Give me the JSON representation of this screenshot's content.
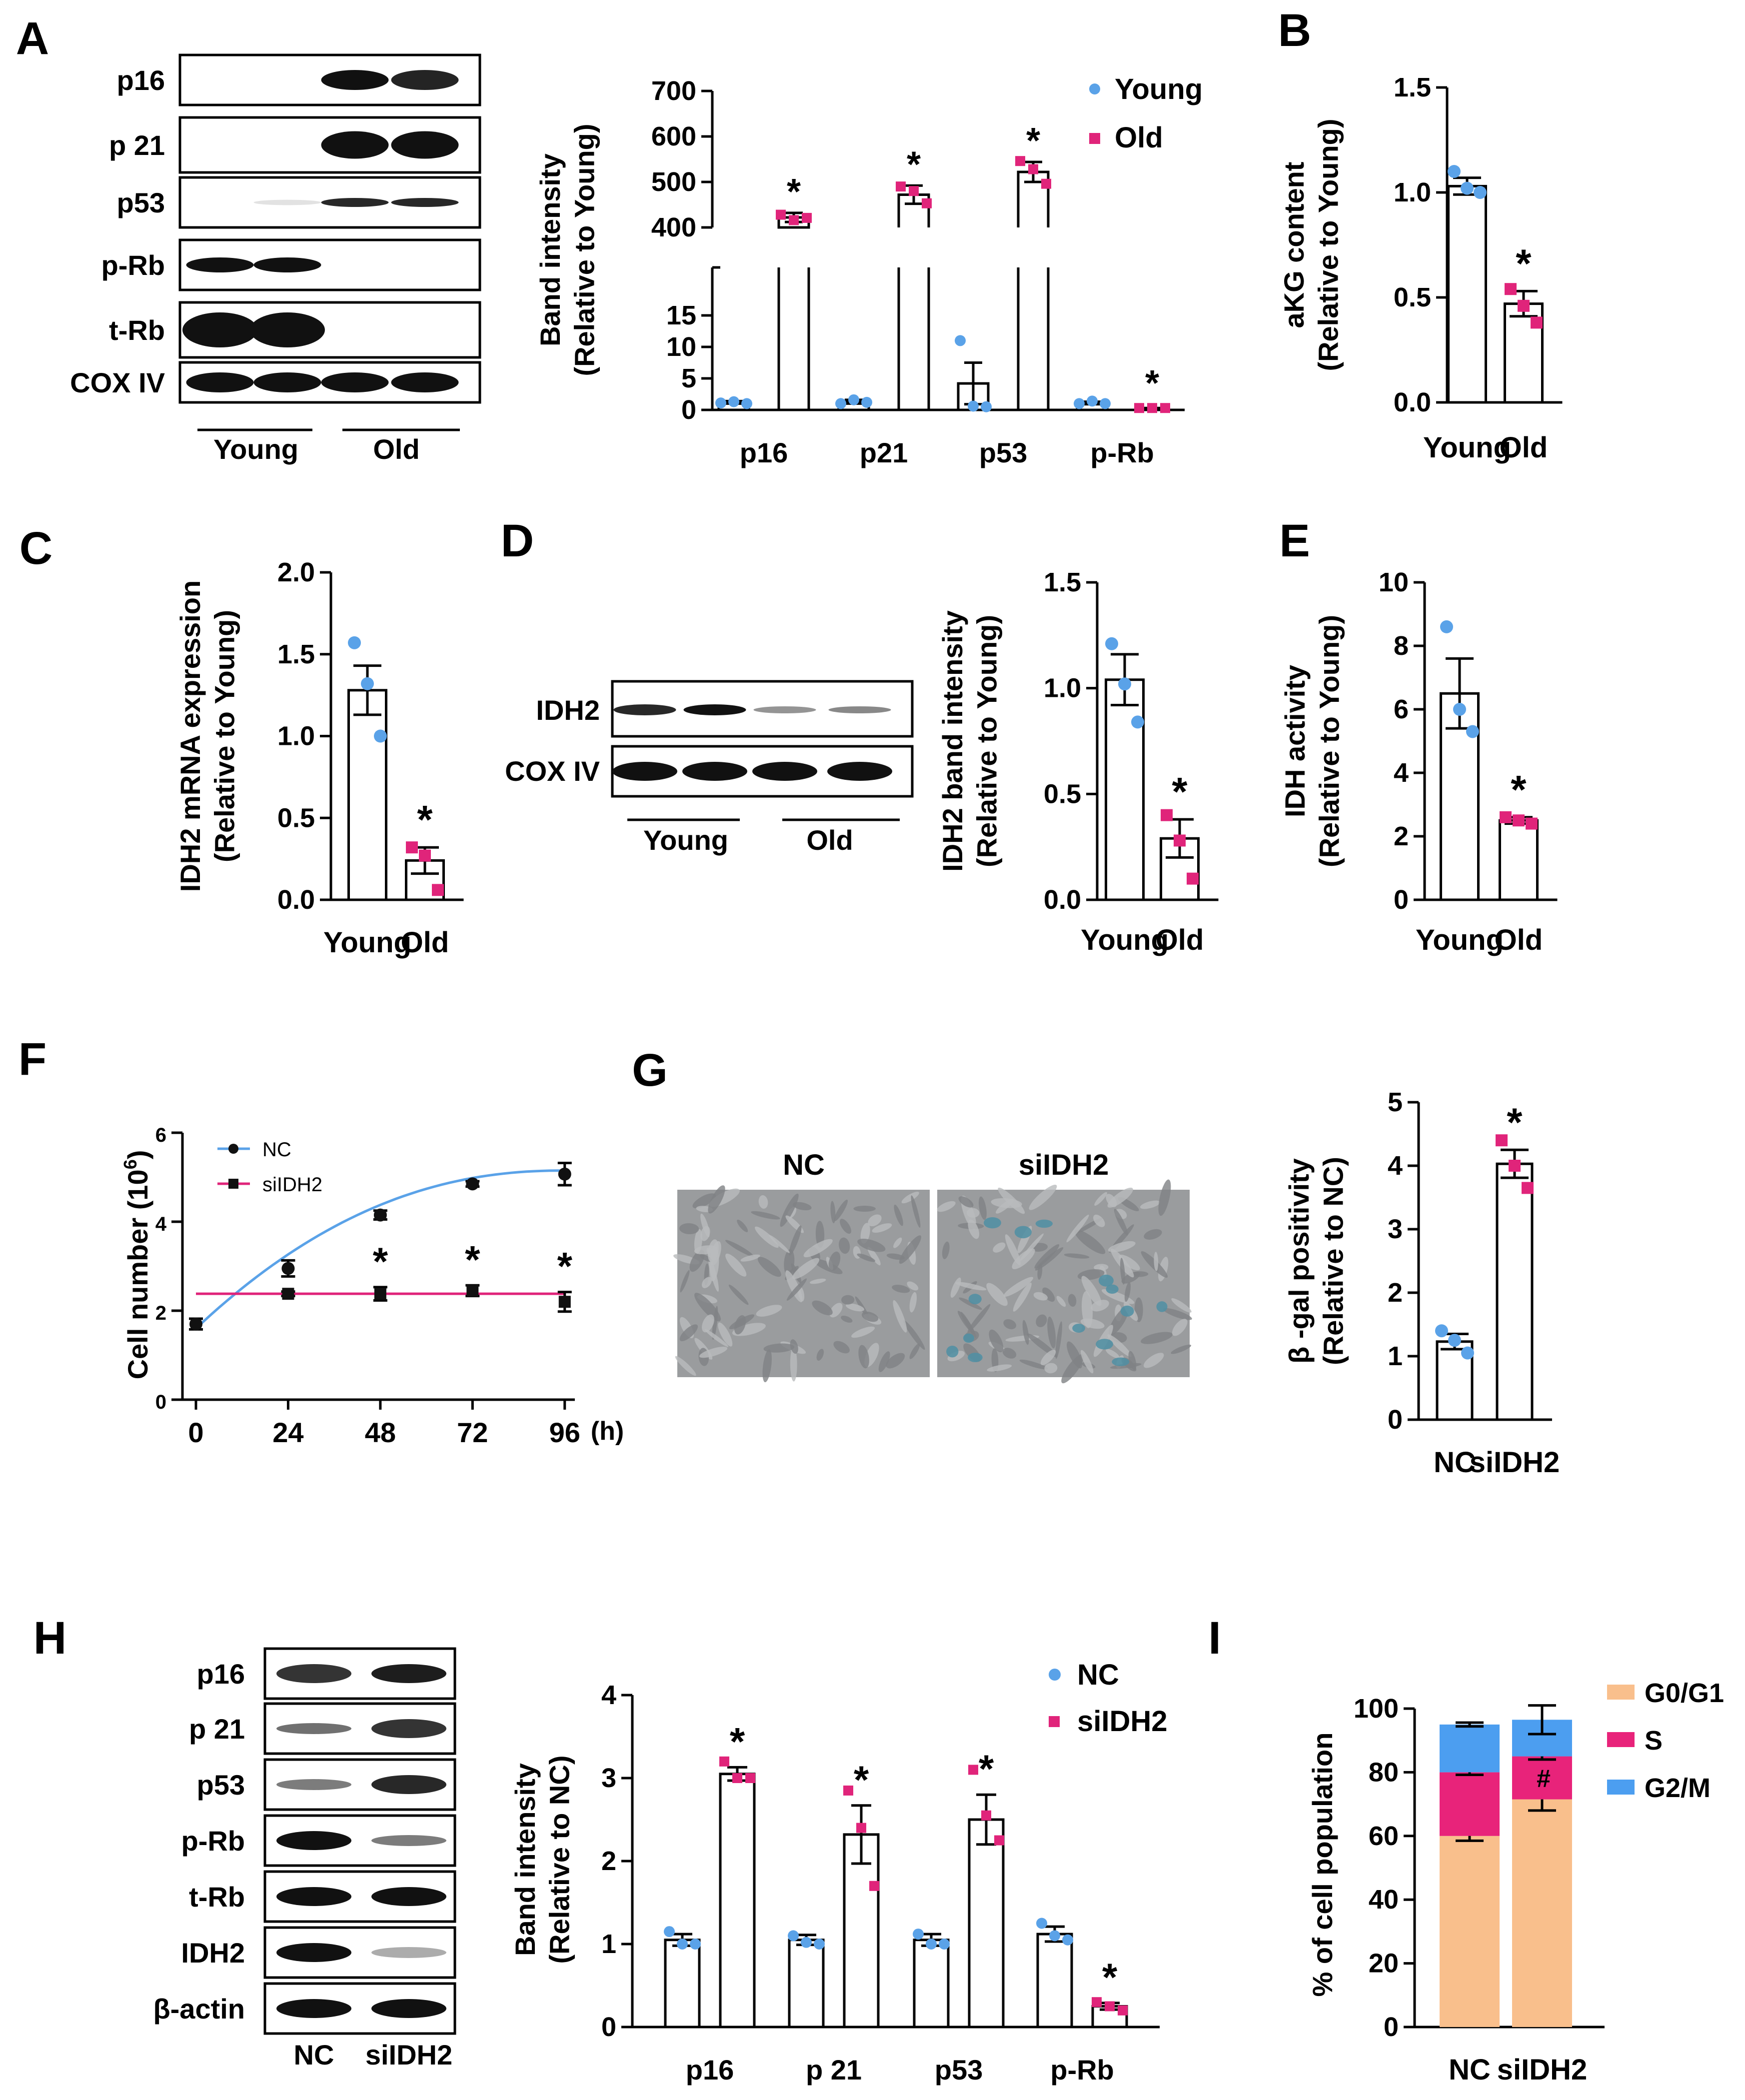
{
  "colors": {
    "young": "#5aa2e8",
    "old": "#e0247a",
    "nc": "#5aa2e8",
    "siidh2": "#e0247a",
    "g0g1": "#f9bf8c",
    "s": "#e8237a",
    "g2m": "#4c9ef0",
    "line_nc": "#5aa2e8",
    "line_si": "#e0247a"
  },
  "panel_letters": [
    "A",
    "B",
    "C",
    "D",
    "E",
    "F",
    "G",
    "H",
    "I"
  ],
  "A": {
    "blot_labels": [
      "p16",
      "p 21",
      "p53",
      "p-Rb",
      "t-Rb",
      "COX IV"
    ],
    "group_labels": [
      "Young",
      "Old"
    ],
    "ylabel": [
      "Band intensity",
      "(Relative to  Young)"
    ],
    "legend": [
      "Young",
      "Old"
    ]
  },
  "B": {
    "ylabel": [
      "aKG content",
      "(Relative to Young)"
    ]
  },
  "C": {
    "ylabel": [
      "IDH2 mRNA expression",
      "(Relative to Young)"
    ]
  },
  "D": {
    "blot_labels": [
      "IDH2",
      "COX IV"
    ],
    "group_labels": [
      "Young",
      "Old"
    ],
    "ylabel": [
      "IDH2 band intensity",
      "(Relative to Young)"
    ]
  },
  "E": {
    "ylabel": [
      "IDH activity",
      "(Relative to Young)"
    ]
  },
  "F": {
    "ylabel_main": "Cell number (10",
    "ylabel_sup": "6",
    "ylabel_close": ")",
    "unit": "(h)",
    "legend": [
      "NC",
      "siIDH2"
    ]
  },
  "G": {
    "image_labels": [
      "NC",
      "siIDH2"
    ],
    "ylabel": [
      "β -gal positivity",
      "(Relative to NC)"
    ]
  },
  "H": {
    "blot_labels": [
      "p16",
      "p 21",
      "p53",
      "p-Rb",
      "t-Rb",
      "IDH2",
      "β-actin"
    ],
    "group_labels": [
      "NC",
      "siIDH2"
    ],
    "ylabel": [
      "Band intensity",
      "(Relative to NC)"
    ],
    "legend": [
      "NC",
      "siIDH2"
    ]
  },
  "I": {
    "ylabel": "% of cell population",
    "legend": [
      "G0/G1",
      "S",
      "G2/M"
    ],
    "annotation": "#"
  },
  "chart_data": [
    {
      "panel": "A",
      "type": "bar",
      "categories": [
        "p16",
        "p21",
        "p53",
        "p-Rb"
      ],
      "yticks_upper": [
        400,
        500,
        600,
        700
      ],
      "yticks_lower": [
        0,
        5,
        10,
        15
      ],
      "series": [
        {
          "name": "Young",
          "values": [
            1.2,
            1.3,
            4.2,
            1.1
          ],
          "errors": [
            0.2,
            0.3,
            3.3,
            0.2
          ],
          "points": [
            [
              1.1,
              1.3,
              1.0
            ],
            [
              1.0,
              1.6,
              1.2
            ],
            [
              11.0,
              0.6,
              0.5
            ],
            [
              1.0,
              1.4,
              1.0
            ]
          ]
        },
        {
          "name": "Old",
          "values": [
            422,
            472,
            522,
            0.3
          ],
          "errors": [
            10,
            20,
            22,
            0.1
          ],
          "points": [
            [
              428,
              416,
              421
            ],
            [
              490,
              480,
              453
            ],
            [
              546,
              528,
              496
            ],
            [
              0.3,
              0.3,
              0.3
            ]
          ]
        }
      ],
      "significance": [
        "*",
        "*",
        "*",
        "*"
      ]
    },
    {
      "panel": "B",
      "type": "bar",
      "categories": [
        "Young",
        "Old"
      ],
      "ylim": [
        0,
        1.5
      ],
      "yticks": [
        "0.0",
        "0.5",
        "1.0",
        "1.5"
      ],
      "values": [
        1.03,
        0.47
      ],
      "errors": [
        0.04,
        0.06
      ],
      "points": [
        [
          1.1,
          1.02,
          1.0
        ],
        [
          0.54,
          0.46,
          0.38
        ]
      ],
      "significance": [
        "",
        "*"
      ]
    },
    {
      "panel": "C",
      "type": "bar",
      "categories": [
        "Young",
        "Old"
      ],
      "ylim": [
        0,
        2.0
      ],
      "yticks": [
        "0.0",
        "0.5",
        "1.0",
        "1.5",
        "2.0"
      ],
      "values": [
        1.28,
        0.24
      ],
      "errors": [
        0.15,
        0.08
      ],
      "points": [
        [
          1.57,
          1.32,
          1.0
        ],
        [
          0.32,
          0.27,
          0.06
        ]
      ],
      "significance": [
        "",
        "*"
      ]
    },
    {
      "panel": "D",
      "type": "bar",
      "categories": [
        "Young",
        "Old"
      ],
      "ylim": [
        0,
        1.5
      ],
      "yticks": [
        "0.0",
        "0.5",
        "1.0",
        "1.5"
      ],
      "values": [
        1.04,
        0.29
      ],
      "errors": [
        0.12,
        0.09
      ],
      "points": [
        [
          1.21,
          1.02,
          0.84
        ],
        [
          0.4,
          0.28,
          0.1
        ]
      ],
      "significance": [
        "",
        "*"
      ]
    },
    {
      "panel": "E",
      "type": "bar",
      "categories": [
        "Young",
        "Old"
      ],
      "ylim": [
        0,
        10
      ],
      "yticks": [
        "0",
        "2",
        "4",
        "6",
        "8",
        "10"
      ],
      "values": [
        6.5,
        2.5
      ],
      "errors": [
        1.1,
        0.1
      ],
      "points": [
        [
          8.6,
          6.0,
          5.3
        ],
        [
          2.6,
          2.5,
          2.4
        ]
      ],
      "significance": [
        "",
        "*"
      ]
    },
    {
      "panel": "F",
      "type": "line",
      "x": [
        0,
        24,
        48,
        72,
        96
      ],
      "xticks": [
        "0",
        "24",
        "48",
        "72",
        "96"
      ],
      "ylim": [
        0,
        6
      ],
      "yticks": [
        "0",
        "2",
        "4",
        "6"
      ],
      "series": [
        {
          "name": "NC",
          "values": [
            1.7,
            2.95,
            4.15,
            4.85,
            5.07
          ],
          "errors": [
            0.12,
            0.18,
            0.1,
            0.06,
            0.25
          ]
        },
        {
          "name": "siIDH2",
          "values": [
            1.7,
            2.38,
            2.38,
            2.45,
            2.2
          ],
          "errors": [
            0.12,
            0.05,
            0.15,
            0.12,
            0.22
          ]
        }
      ],
      "significance": [
        "",
        "",
        "*",
        "*",
        "*"
      ]
    },
    {
      "panel": "G",
      "type": "bar",
      "categories": [
        "NC",
        "siIDH2"
      ],
      "ylim": [
        0,
        5
      ],
      "yticks": [
        "0",
        "1",
        "2",
        "3",
        "4",
        "5"
      ],
      "values": [
        1.23,
        4.03
      ],
      "errors": [
        0.12,
        0.22
      ],
      "points": [
        [
          1.4,
          1.25,
          1.05
        ],
        [
          4.4,
          4.0,
          3.65
        ]
      ],
      "significance": [
        "",
        "*"
      ]
    },
    {
      "panel": "H",
      "type": "bar",
      "categories": [
        "p16",
        "p 21",
        "p53",
        "p-Rb"
      ],
      "ylim": [
        0,
        4
      ],
      "yticks": [
        "0",
        "1",
        "2",
        "3",
        "4"
      ],
      "series": [
        {
          "name": "NC",
          "values": [
            1.05,
            1.05,
            1.05,
            1.12
          ],
          "errors": [
            0.07,
            0.06,
            0.07,
            0.09
          ],
          "points": [
            [
              1.15,
              1.0,
              1.0
            ],
            [
              1.1,
              1.02,
              1.0
            ],
            [
              1.12,
              1.0,
              1.0
            ],
            [
              1.25,
              1.1,
              1.05
            ]
          ]
        },
        {
          "name": "siIDH2",
          "values": [
            3.05,
            2.32,
            2.5,
            0.25
          ],
          "errors": [
            0.08,
            0.35,
            0.3,
            0.04
          ],
          "points": [
            [
              3.2,
              3.0,
              3.0
            ],
            [
              2.85,
              2.4,
              1.7
            ],
            [
              3.1,
              2.55,
              2.25
            ],
            [
              0.3,
              0.25,
              0.2
            ]
          ]
        }
      ],
      "significance": [
        "*",
        "*",
        "*",
        "*"
      ]
    },
    {
      "panel": "I",
      "type": "bar",
      "stacked": true,
      "categories": [
        "NC",
        "siIDH2"
      ],
      "ylim": [
        0,
        100
      ],
      "yticks": [
        "0",
        "20",
        "40",
        "60",
        "80",
        "100"
      ],
      "series": [
        {
          "name": "G0/G1",
          "values": [
            60,
            71.5
          ],
          "errors": [
            1.5,
            3.5
          ]
        },
        {
          "name": "S",
          "values": [
            20,
            13.5
          ],
          "errors": [
            0.8,
            1.0
          ]
        },
        {
          "name": "G2/M",
          "values": [
            15,
            11.5
          ],
          "errors": [
            0.6,
            4.5
          ]
        }
      ]
    }
  ]
}
